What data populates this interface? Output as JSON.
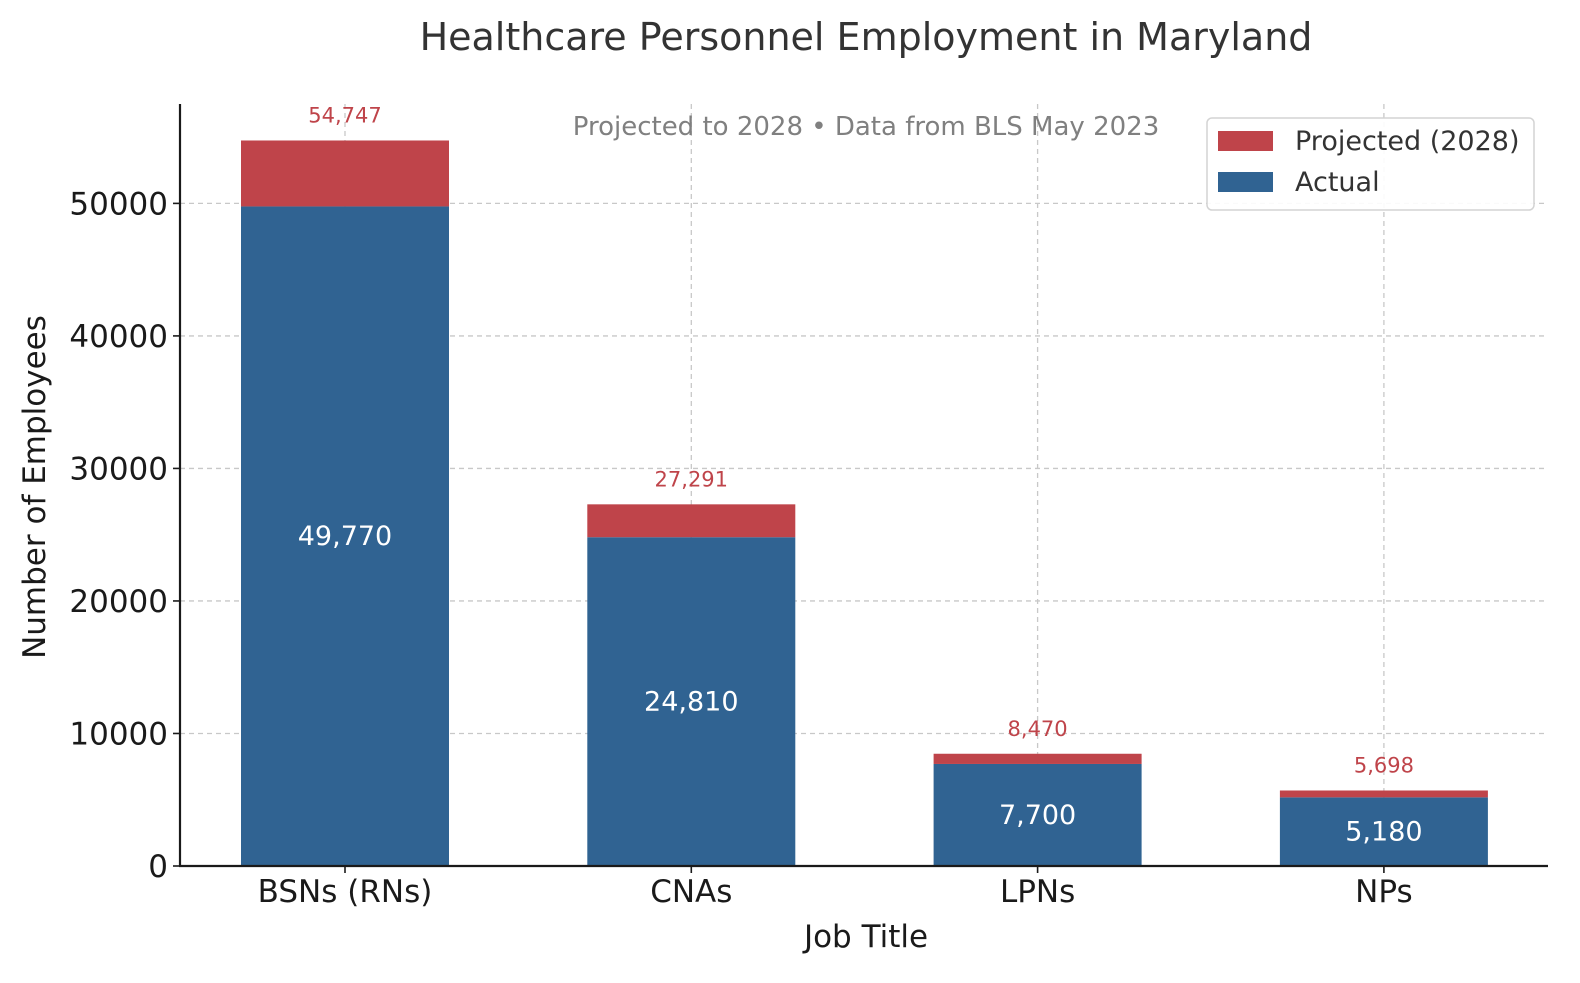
{
  "chart_data": {
    "type": "bar",
    "stacked": true,
    "title": "Healthcare Personnel Employment in Maryland",
    "subtitle": "Projected to 2028 • Data from BLS May 2023",
    "xlabel": "Job Title",
    "ylabel": "Number of Employees",
    "categories": [
      "BSNs (RNs)",
      "CNAs",
      "LPNs",
      "NPs"
    ],
    "series": [
      {
        "name": "Actual",
        "values": [
          49770,
          24810,
          7700,
          5180
        ],
        "color": "#306392"
      },
      {
        "name": "Projected (2028)",
        "values": [
          4977,
          2481,
          770,
          518
        ],
        "color": "#bf444a"
      }
    ],
    "actual_labels": [
      "49,770",
      "24,810",
      "7,700",
      "5,180"
    ],
    "projected_labels": [
      "54,747",
      "27,291",
      "8,470",
      "5,698"
    ],
    "projected_totals": [
      54747,
      27291,
      8470,
      5698
    ],
    "yticks": [
      0,
      10000,
      20000,
      30000,
      40000,
      50000
    ],
    "ylim": [
      0,
      57500
    ],
    "grid": true,
    "legend_position": "top-right",
    "legend_order": [
      "Projected (2028)",
      "Actual"
    ]
  }
}
